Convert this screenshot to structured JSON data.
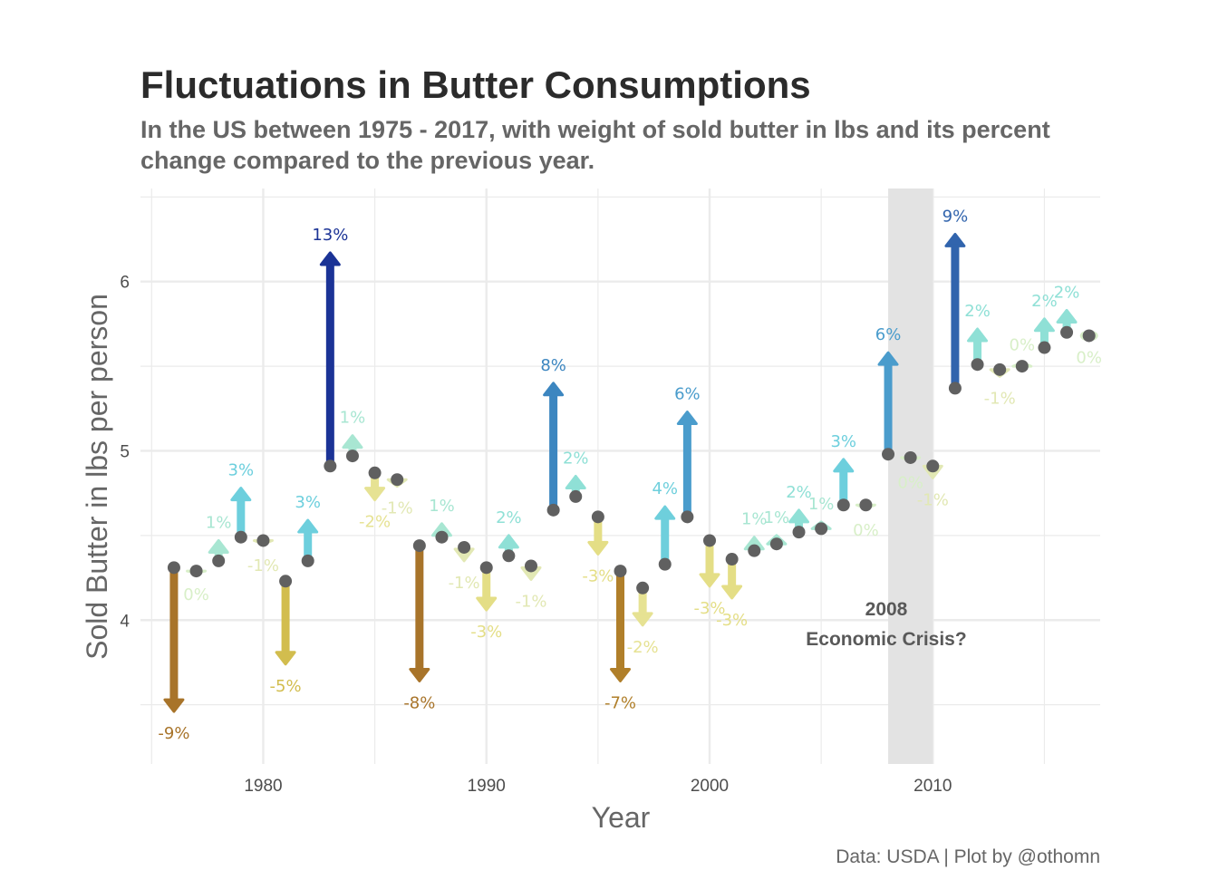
{
  "title": "Fluctuations in Butter Consumptions",
  "subtitle": {
    "line1": "In the US between 1975 - 2017, with weight of sold butter in lbs and its percent",
    "line2": "change compared to the previous year."
  },
  "caption": "Data: USDA | Plot by @othomn",
  "annotation": {
    "line1": "2008",
    "line2": "Economic Crisis?"
  },
  "colors": {
    "point": "#606060",
    "grid": "#ebebeb",
    "shade": "#e3e3e3",
    "scale": {
      "-9": "#a8742a",
      "-8": "#a8742a",
      "-7": "#b07f2a",
      "-5": "#d2bd4e",
      "-3": "#e4de86",
      "-2": "#e6e293",
      "-1": "#e2e8b4",
      "0": "#d8efc8",
      "1": "#a8e6d2",
      "2": "#8fe0d6",
      "3": "#6dcfdd",
      "4": "#6ecfdc",
      "6": "#4a9ccc",
      "8": "#3c86c0",
      "9": "#3164ad",
      "13": "#1b3396"
    }
  },
  "chart_data": {
    "type": "scatter",
    "title": "Fluctuations in Butter Consumptions",
    "xlabel": "Year",
    "ylabel": "Sold Butter in lbs per person",
    "xlim": [
      1974.5,
      2017.5
    ],
    "ylim": [
      3.15,
      6.55
    ],
    "xticks": [
      1980,
      1990,
      2000,
      2010
    ],
    "yticks": [
      4,
      5,
      6
    ],
    "grid": true,
    "shaded_region": {
      "x": [
        2008,
        2010
      ]
    },
    "series": [
      {
        "points": [
          {
            "year": 1976,
            "value": 4.31,
            "next_value": 3.46,
            "label": "-9%"
          },
          {
            "year": 1977,
            "value": 4.29,
            "next_value": 4.28,
            "label": "0%"
          },
          {
            "year": 1978,
            "value": 4.35,
            "next_value": 4.47,
            "label": "1%"
          },
          {
            "year": 1979,
            "value": 4.49,
            "next_value": 4.78,
            "label": "3%"
          },
          {
            "year": 1980,
            "value": 4.47,
            "next_value": 4.45,
            "label": "-1%"
          },
          {
            "year": 1981,
            "value": 4.23,
            "next_value": 3.74,
            "label": "-5%"
          },
          {
            "year": 1982,
            "value": 4.35,
            "next_value": 4.59,
            "label": "3%"
          },
          {
            "year": 1983,
            "value": 4.91,
            "next_value": 6.17,
            "label": "13%"
          },
          {
            "year": 1984,
            "value": 4.97,
            "next_value": 5.09,
            "label": "1%"
          },
          {
            "year": 1985,
            "value": 4.87,
            "next_value": 4.71,
            "label": "-2%"
          },
          {
            "year": 1986,
            "value": 4.83,
            "next_value": 4.79,
            "label": "-1%"
          },
          {
            "year": 1987,
            "value": 4.44,
            "next_value": 3.64,
            "label": "-8%"
          },
          {
            "year": 1988,
            "value": 4.49,
            "next_value": 4.57,
            "label": "1%"
          },
          {
            "year": 1989,
            "value": 4.43,
            "next_value": 4.35,
            "label": "-1%"
          },
          {
            "year": 1990,
            "value": 4.31,
            "next_value": 4.06,
            "label": "-3%"
          },
          {
            "year": 1991,
            "value": 4.38,
            "next_value": 4.5,
            "label": "2%"
          },
          {
            "year": 1992,
            "value": 4.32,
            "next_value": 4.24,
            "label": "-1%"
          },
          {
            "year": 1993,
            "value": 4.65,
            "next_value": 5.4,
            "label": "8%"
          },
          {
            "year": 1994,
            "value": 4.73,
            "next_value": 4.85,
            "label": "2%"
          },
          {
            "year": 1995,
            "value": 4.61,
            "next_value": 4.39,
            "label": "-3%"
          },
          {
            "year": 1996,
            "value": 4.29,
            "next_value": 3.64,
            "label": "-7%"
          },
          {
            "year": 1997,
            "value": 4.19,
            "next_value": 3.97,
            "label": "-2%"
          },
          {
            "year": 1998,
            "value": 4.33,
            "next_value": 4.67,
            "label": "4%"
          },
          {
            "year": 1999,
            "value": 4.61,
            "next_value": 5.23,
            "label": "6%"
          },
          {
            "year": 2000,
            "value": 4.47,
            "next_value": 4.2,
            "label": "-3%"
          },
          {
            "year": 2001,
            "value": 4.36,
            "next_value": 4.13,
            "label": "-3%"
          },
          {
            "year": 2002,
            "value": 4.41,
            "next_value": 4.49,
            "label": "1%"
          },
          {
            "year": 2003,
            "value": 4.45,
            "next_value": 4.5,
            "label": "1%"
          },
          {
            "year": 2004,
            "value": 4.52,
            "next_value": 4.65,
            "label": "2%"
          },
          {
            "year": 2005,
            "value": 4.54,
            "next_value": 4.58,
            "label": "1%"
          },
          {
            "year": 2006,
            "value": 4.68,
            "next_value": 4.95,
            "label": "3%"
          },
          {
            "year": 2007,
            "value": 4.68,
            "next_value": 4.66,
            "label": "0%"
          },
          {
            "year": 2008,
            "value": 4.98,
            "next_value": 5.58,
            "label": "6%"
          },
          {
            "year": 2009,
            "value": 4.96,
            "next_value": 4.94,
            "label": "0%"
          },
          {
            "year": 2010,
            "value": 4.91,
            "next_value": 4.84,
            "label": "-1%"
          },
          {
            "year": 2011,
            "value": 5.37,
            "next_value": 6.28,
            "label": "9%"
          },
          {
            "year": 2012,
            "value": 5.51,
            "next_value": 5.72,
            "label": "2%"
          },
          {
            "year": 2013,
            "value": 5.48,
            "next_value": 5.44,
            "label": "-1%"
          },
          {
            "year": 2014,
            "value": 5.5,
            "next_value": 5.52,
            "label": "0%"
          },
          {
            "year": 2015,
            "value": 5.61,
            "next_value": 5.78,
            "label": "2%"
          },
          {
            "year": 2016,
            "value": 5.7,
            "next_value": 5.83,
            "label": "2%"
          },
          {
            "year": 2017,
            "value": 5.68,
            "next_value": 5.68,
            "label": "0%"
          }
        ]
      }
    ]
  }
}
